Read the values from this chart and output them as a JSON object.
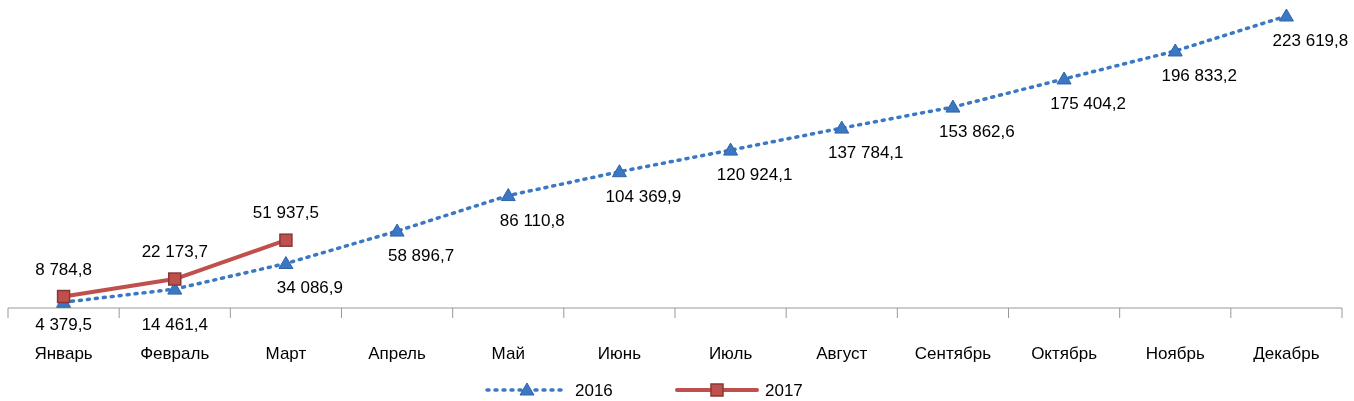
{
  "chart_data": {
    "type": "line",
    "categories": [
      "Январь",
      "Февраль",
      "Март",
      "Апрель",
      "Май",
      "Июнь",
      "Июль",
      "Август",
      "Сентябрь",
      "Октябрь",
      "Ноябрь",
      "Декабрь"
    ],
    "series": [
      {
        "name": "2016",
        "color": "#3a78c4",
        "marker": "triangle",
        "line_style": "dotted",
        "values": [
          4379.5,
          14461.4,
          34086.9,
          58896.7,
          86110.8,
          104369.9,
          120924.1,
          137784.1,
          153862.6,
          175404.2,
          196833.2,
          223619.8
        ],
        "value_labels": [
          "4 379,5",
          "14 461,4",
          "34 086,9",
          "58 896,7",
          "86 110,8",
          "104 369,9",
          "120 924,1",
          "137 784,1",
          "153 862,6",
          "175 404,2",
          "196 833,2",
          "223 619,8"
        ]
      },
      {
        "name": "2017",
        "color": "#c0504d",
        "marker": "square",
        "line_style": "solid",
        "values": [
          8784.8,
          22173.7,
          51937.5,
          null,
          null,
          null,
          null,
          null,
          null,
          null,
          null,
          null
        ],
        "value_labels": [
          "8 784,8",
          "22 173,7",
          "51 937,5",
          null,
          null,
          null,
          null,
          null,
          null,
          null,
          null,
          null
        ]
      }
    ],
    "legend": "bottom"
  }
}
